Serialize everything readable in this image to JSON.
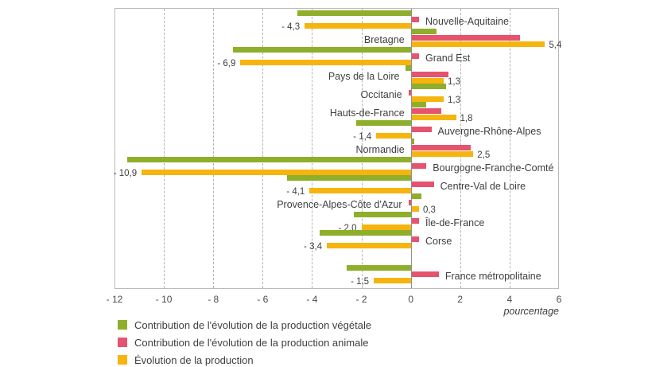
{
  "chart_data": {
    "type": "bar",
    "orientation": "horizontal",
    "title": "",
    "categories": [
      "Nouvelle-Aquitaine",
      "Bretagne",
      "Grand Est",
      "Pays de la Loire",
      "Occitanie",
      "Hauts-de-France",
      "Auvergne-Rhône-Alpes",
      "Normandie",
      "Bourgogne-Franche-Comté",
      "Centre-Val de Loire",
      "Provence-Alpes-Côte d'Azur",
      "Île-de-France",
      "Corse",
      "France métropolitaine"
    ],
    "series": [
      {
        "name": "Contribution de l'évolution de la production végétale",
        "color": "#8FAE2B",
        "values": [
          -4.6,
          1.0,
          -7.2,
          -0.2,
          1.4,
          0.6,
          -2.2,
          0.1,
          -11.5,
          -5.0,
          0.4,
          -2.3,
          -3.7,
          -2.6
        ]
      },
      {
        "name": "Contribution de l'évolution de la production animale",
        "color": "#E5536F",
        "values": [
          0.3,
          4.4,
          0.3,
          1.5,
          -0.1,
          1.2,
          0.8,
          2.4,
          0.6,
          0.9,
          -0.1,
          0.3,
          0.3,
          1.1
        ]
      },
      {
        "name": "Évolution de la production",
        "color": "#F6B40F",
        "values": [
          -4.3,
          5.4,
          -6.9,
          1.3,
          1.3,
          1.8,
          -1.4,
          2.5,
          -10.9,
          -4.1,
          0.3,
          -2.0,
          -3.4,
          -1.5
        ],
        "value_labels": [
          "- 4,3",
          "5,4",
          "- 6,9",
          "1,3",
          "1,3",
          "1,8",
          "- 1,4",
          "2,5",
          "- 10,9",
          "- 4,1",
          "0,3",
          "- 2,0",
          "- 3,4",
          "- 1,5"
        ]
      }
    ],
    "value_labels_on_series": "Évolution de la production",
    "xlim": [
      -12,
      6
    ],
    "xticks": [
      -12,
      -10,
      -8,
      -6,
      -4,
      -2,
      0,
      2,
      4,
      6
    ],
    "xtick_labels": [
      "- 12",
      "- 10",
      "- 8",
      "- 6",
      "- 4",
      "- 2",
      "0",
      "2",
      "4",
      "6"
    ],
    "xlabel": "pourcentage",
    "grid": "vertical-dashed",
    "zero_line": true,
    "legend_position": "bottom-left",
    "last_category_separated": true
  }
}
